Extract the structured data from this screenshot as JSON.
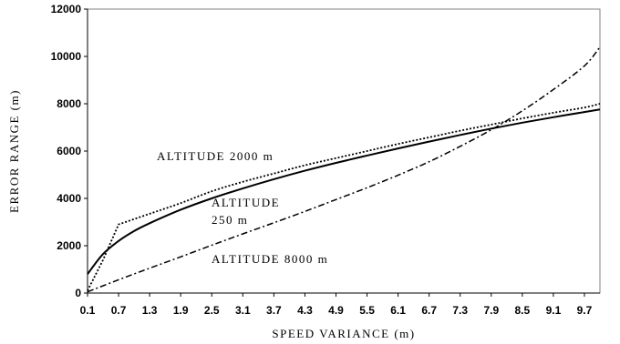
{
  "chart_data": {
    "type": "line",
    "title": "",
    "xlabel": "SPEED VARIANCE  (m)",
    "ylabel": "ERROR  RANGE  (m)",
    "ylim": [
      0,
      12000
    ],
    "xlim": [
      0.1,
      10.0
    ],
    "grid": false,
    "legend": "none",
    "y_ticks": [
      "0",
      "2000",
      "4000",
      "6000",
      "8000",
      "10000",
      "12000"
    ],
    "x_ticks": [
      "0.1",
      "0.7",
      "1.3",
      "1.9",
      "2.5",
      "3.1",
      "3.7",
      "4.3",
      "4.9",
      "5.5",
      "6.1",
      "6.7",
      "7.3",
      "7.9",
      "8.5",
      "9.1",
      "9.7"
    ],
    "annotations": [
      {
        "id": "alt2000",
        "text": "ALTITUDE  2000  m"
      },
      {
        "id": "alt250a",
        "text": "ALTITUDE"
      },
      {
        "id": "alt250b",
        "text": "250  m"
      },
      {
        "id": "alt8000",
        "text": "ALTITUDE  8000  m"
      }
    ],
    "series": [
      {
        "id": "alt250",
        "style": "solid",
        "x": [
          0.1,
          0.4,
          0.7,
          1.0,
          1.3,
          1.9,
          2.5,
          3.1,
          3.7,
          4.3,
          4.9,
          5.5,
          6.1,
          6.7,
          7.3,
          7.9,
          8.5,
          9.1,
          9.7,
          10.0
        ],
        "y": [
          800,
          1650,
          2200,
          2620,
          2950,
          3520,
          4000,
          4420,
          4810,
          5170,
          5500,
          5810,
          6110,
          6400,
          6680,
          6950,
          7200,
          7430,
          7650,
          7760
        ]
      },
      {
        "id": "alt2000",
        "style": "dotted",
        "x": [
          0.1,
          0.4,
          0.7,
          1.3,
          1.9,
          2.5,
          3.1,
          3.7,
          4.3,
          4.9,
          5.5,
          6.1,
          6.7,
          7.3,
          7.9,
          8.5,
          9.1,
          9.7,
          10.0
        ],
        "y": [
          100,
          1400,
          2900,
          3350,
          3800,
          4300,
          4700,
          5050,
          5400,
          5700,
          6000,
          6300,
          6580,
          6860,
          7120,
          7380,
          7620,
          7840,
          8000
        ]
      },
      {
        "id": "alt8000",
        "style": "dashdot",
        "x": [
          0.1,
          0.7,
          1.3,
          1.9,
          2.5,
          3.1,
          3.7,
          4.3,
          4.9,
          5.5,
          6.1,
          6.7,
          7.3,
          7.9,
          8.5,
          9.1,
          9.7,
          10.0
        ],
        "y": [
          50,
          560,
          1050,
          1530,
          2020,
          2500,
          2970,
          3450,
          3950,
          4450,
          4980,
          5550,
          6200,
          6900,
          7700,
          8600,
          9600,
          10400
        ]
      }
    ]
  }
}
